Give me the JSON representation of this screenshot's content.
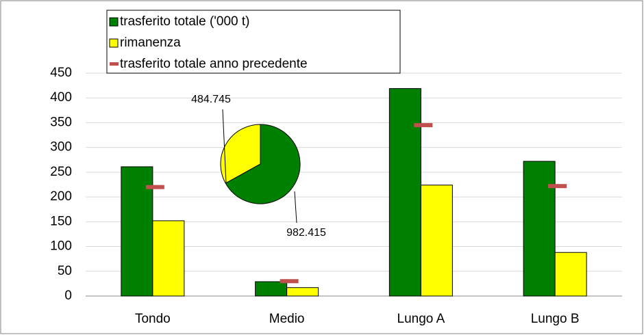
{
  "chart_data": [
    {
      "type": "bar",
      "categories": [
        "Tondo",
        "Medio",
        "Lungo A",
        "Lungo B"
      ],
      "series": [
        {
          "name": "trasferito totale ('000 t)",
          "color": "#008000",
          "values": [
            261,
            29,
            419,
            272
          ]
        },
        {
          "name": "rimanenza",
          "color": "#ffff00",
          "values": [
            152,
            17,
            224,
            88
          ]
        },
        {
          "name": "trasferito totale anno precedente",
          "color": "#c0504d",
          "style": "dash",
          "values": [
            220,
            30,
            345,
            222
          ]
        }
      ],
      "ylim": [
        0,
        450
      ],
      "yticks": [
        0,
        50,
        100,
        150,
        200,
        250,
        300,
        350,
        400,
        450
      ],
      "grid": true,
      "legend": "top-left"
    },
    {
      "type": "pie",
      "values": [
        484.745,
        982.415
      ],
      "colors": [
        "#ffff00",
        "#008000"
      ]
    }
  ]
}
